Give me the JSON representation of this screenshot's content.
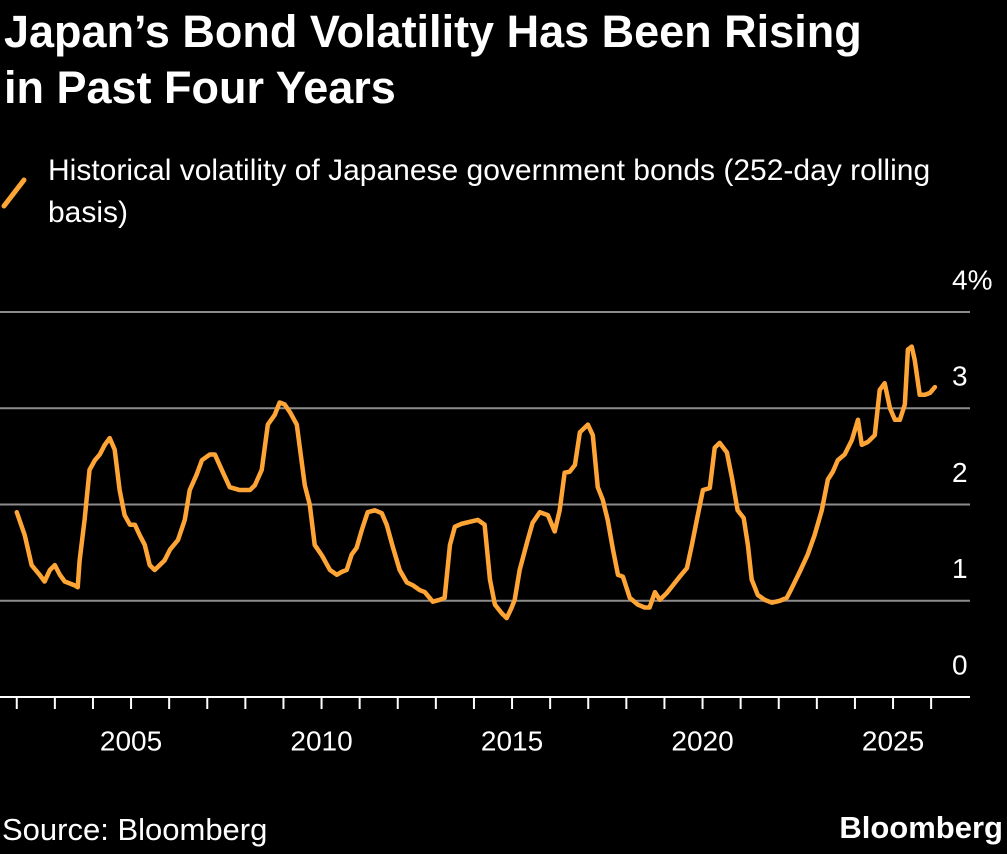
{
  "chart_data": {
    "type": "line",
    "title": "Japan’s Bond Volatility Has Been Rising in Past Four Years",
    "source": "Source: Bloomberg",
    "brand": "Bloomberg",
    "x": [
      2002.0,
      2002.21,
      2002.39,
      2002.6,
      2002.73,
      2002.87,
      2003.0,
      2003.13,
      2003.26,
      2003.52,
      2003.6,
      2003.65,
      2003.78,
      2003.91,
      2004.05,
      2004.18,
      2004.31,
      2004.44,
      2004.57,
      2004.7,
      2004.83,
      2004.97,
      2005.1,
      2005.23,
      2005.36,
      2005.49,
      2005.62,
      2005.88,
      2006.02,
      2006.23,
      2006.41,
      2006.54,
      2006.72,
      2006.86,
      2007.07,
      2007.2,
      2007.38,
      2007.59,
      2007.85,
      2008.12,
      2008.25,
      2008.43,
      2008.59,
      2008.77,
      2008.9,
      2009.03,
      2009.17,
      2009.35,
      2009.56,
      2009.69,
      2009.82,
      2010.01,
      2010.22,
      2010.4,
      2010.53,
      2010.66,
      2010.79,
      2010.92,
      2011.06,
      2011.21,
      2011.4,
      2011.58,
      2011.71,
      2011.87,
      2012.05,
      2012.24,
      2012.4,
      2012.58,
      2012.71,
      2012.92,
      2013.1,
      2013.23,
      2013.37,
      2013.5,
      2013.68,
      2013.89,
      2014.1,
      2014.28,
      2014.42,
      2014.55,
      2014.73,
      2014.86,
      2014.99,
      2015.07,
      2015.2,
      2015.41,
      2015.54,
      2015.73,
      2015.94,
      2016.12,
      2016.25,
      2016.38,
      2016.51,
      2016.65,
      2016.78,
      2016.99,
      2017.12,
      2017.25,
      2017.38,
      2017.51,
      2017.65,
      2017.78,
      2017.91,
      2018.09,
      2018.3,
      2018.48,
      2018.61,
      2018.75,
      2018.88,
      2019.06,
      2019.22,
      2019.4,
      2019.59,
      2019.72,
      2019.85,
      2020.01,
      2020.19,
      2020.32,
      2020.45,
      2020.64,
      2020.77,
      2020.92,
      2021.08,
      2021.19,
      2021.29,
      2021.45,
      2021.63,
      2021.82,
      2022.03,
      2022.21,
      2022.34,
      2022.55,
      2022.76,
      2022.94,
      2023.13,
      2023.29,
      2023.42,
      2023.55,
      2023.73,
      2023.92,
      2024.08,
      2024.18,
      2024.34,
      2024.52,
      2024.65,
      2024.78,
      2024.92,
      2025.05,
      2025.18,
      2025.31,
      2025.39,
      2025.49,
      2025.57,
      2025.7,
      2025.84,
      2025.97,
      2026.1
    ],
    "series": [
      {
        "name": "Historical volatility of Japanese government bonds (252-day rolling basis)",
        "color": "#ffa536",
        "values": [
          1.92,
          1.68,
          1.37,
          1.27,
          1.2,
          1.32,
          1.37,
          1.27,
          1.2,
          1.16,
          1.14,
          1.42,
          1.84,
          2.36,
          2.46,
          2.52,
          2.62,
          2.69,
          2.57,
          2.15,
          1.89,
          1.79,
          1.79,
          1.68,
          1.58,
          1.37,
          1.32,
          1.42,
          1.53,
          1.63,
          1.84,
          2.15,
          2.31,
          2.46,
          2.52,
          2.52,
          2.36,
          2.18,
          2.15,
          2.15,
          2.2,
          2.36,
          2.83,
          2.93,
          3.06,
          3.04,
          2.96,
          2.83,
          2.2,
          2.0,
          1.58,
          1.47,
          1.32,
          1.27,
          1.3,
          1.32,
          1.48,
          1.55,
          1.74,
          1.92,
          1.94,
          1.91,
          1.79,
          1.56,
          1.32,
          1.19,
          1.16,
          1.11,
          1.09,
          0.99,
          1.01,
          1.03,
          1.58,
          1.77,
          1.8,
          1.82,
          1.84,
          1.79,
          1.22,
          0.96,
          0.87,
          0.82,
          0.93,
          1.01,
          1.32,
          1.63,
          1.81,
          1.92,
          1.89,
          1.72,
          1.94,
          2.33,
          2.34,
          2.41,
          2.75,
          2.83,
          2.72,
          2.18,
          2.05,
          1.84,
          1.53,
          1.27,
          1.25,
          1.03,
          0.96,
          0.93,
          0.93,
          1.09,
          1.01,
          1.08,
          1.16,
          1.25,
          1.34,
          1.58,
          1.84,
          2.15,
          2.17,
          2.59,
          2.64,
          2.54,
          2.28,
          1.94,
          1.86,
          1.58,
          1.22,
          1.06,
          1.01,
          0.98,
          1.0,
          1.03,
          1.13,
          1.3,
          1.48,
          1.68,
          1.94,
          2.26,
          2.34,
          2.46,
          2.52,
          2.67,
          2.88,
          2.62,
          2.65,
          2.72,
          3.19,
          3.26,
          3.0,
          2.88,
          2.88,
          3.04,
          3.61,
          3.64,
          3.5,
          3.14,
          3.14,
          3.16,
          3.22
        ]
      }
    ],
    "xlim": [
      2001.56,
      2027.02
    ],
    "xticks": [
      2005,
      2010,
      2015,
      2020,
      2025
    ],
    "minor_xticks": [
      2002,
      2003,
      2004,
      2005,
      2006,
      2007,
      2008,
      2009,
      2010,
      2011,
      2012,
      2013,
      2014,
      2015,
      2016,
      2017,
      2018,
      2019,
      2020,
      2021,
      2022,
      2023,
      2024,
      2025,
      2026
    ],
    "ylim": [
      0,
      4
    ],
    "yticks": [
      0,
      1,
      2,
      3,
      {
        "value": 4,
        "label": "4%"
      }
    ],
    "grid": true
  }
}
